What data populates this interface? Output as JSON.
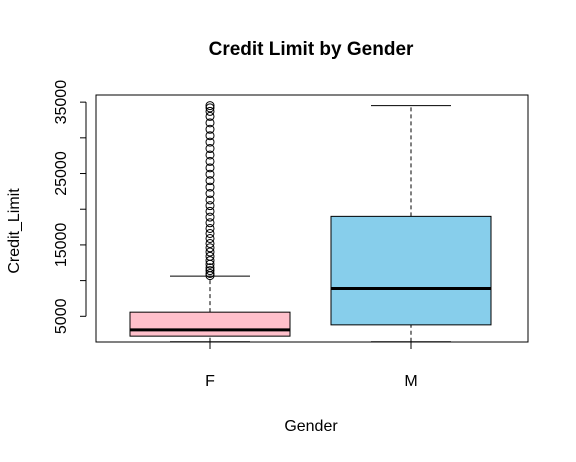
{
  "chart_data": {
    "type": "boxplot",
    "title": "Credit Limit by Gender",
    "xlabel": "Gender",
    "ylabel": "Credit_Limit",
    "categories": [
      "F",
      "M"
    ],
    "ylim": [
      1400,
      36000
    ],
    "y_ticks": [
      5000,
      15000,
      25000,
      35000
    ],
    "grid": false,
    "legend": "none",
    "boxes": [
      {
        "category": "F",
        "color": "#FFC0CB",
        "min": 1440,
        "q1": 2220,
        "median": 3100,
        "q3": 5580,
        "whisker_high": 10620,
        "outliers": [
          10700,
          11000,
          11400,
          11800,
          12300,
          12800,
          13400,
          14000,
          14600,
          15200,
          15900,
          16600,
          17300,
          18100,
          18900,
          19700,
          20500,
          21300,
          22200,
          23100,
          24000,
          24900,
          25800,
          26700,
          27600,
          28500,
          29400,
          30300,
          31200,
          32100,
          33000,
          33700,
          34200,
          34516
        ]
      },
      {
        "category": "M",
        "color": "#87CEEB",
        "min": 1440,
        "q1": 3800,
        "median": 8900,
        "q3": 19000,
        "whisker_high": 34516,
        "outliers": []
      }
    ]
  }
}
